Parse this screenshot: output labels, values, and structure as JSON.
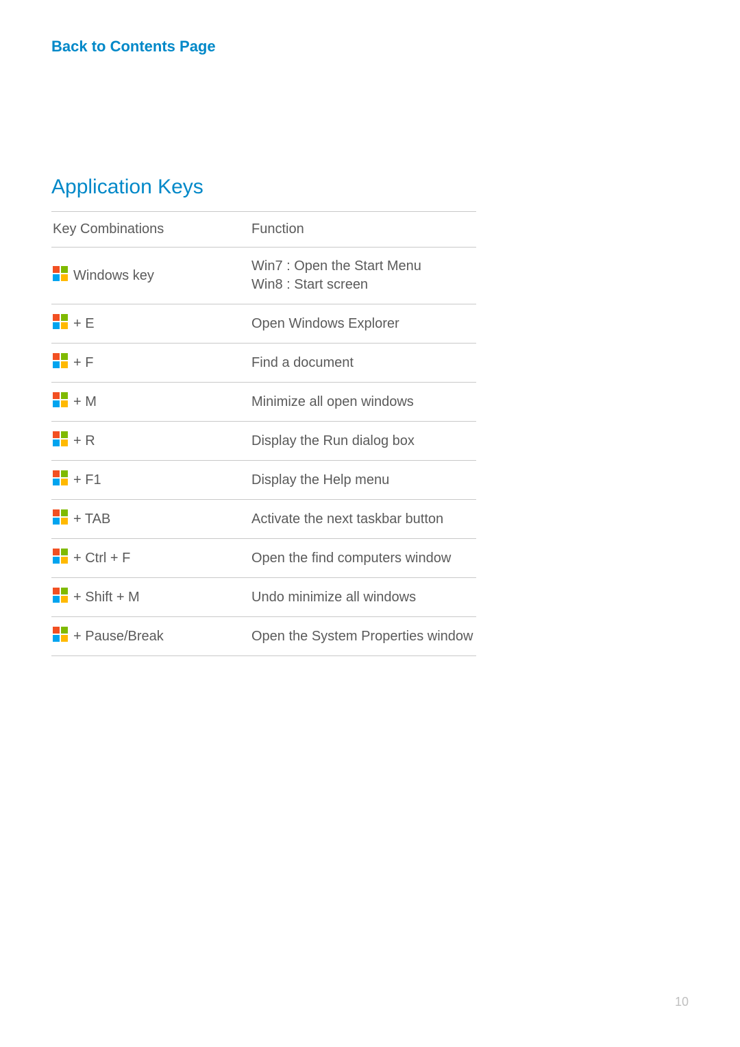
{
  "colors": {
    "link": "#0088c8",
    "heading": "#0088c8",
    "text": "#5a5a5a",
    "border": "#c8c8c8",
    "background": "#ffffff",
    "pageNumber": "#c0c0c0",
    "winIcon": {
      "tl": "#f25022",
      "tr": "#7fba00",
      "bl": "#00a4ef",
      "br": "#ffb900"
    }
  },
  "backLink": "Back to Contents Page",
  "heading": "Application Keys",
  "table": {
    "headers": {
      "col1": "Key Combinations",
      "col2": "Function"
    },
    "rows": [
      {
        "key": "Windows key",
        "func": [
          "Win7 : Open the Start Menu",
          "Win8 : Start screen"
        ]
      },
      {
        "key": "+ E",
        "func": [
          "Open Windows Explorer"
        ]
      },
      {
        "key": "+ F",
        "func": [
          "Find a document"
        ]
      },
      {
        "key": "+ M",
        "func": [
          "Minimize all open windows"
        ]
      },
      {
        "key": "+ R",
        "func": [
          "Display the Run dialog box"
        ]
      },
      {
        "key": "+ F1",
        "func": [
          "Display the Help menu"
        ]
      },
      {
        "key": "+ TAB",
        "func": [
          "Activate the next taskbar button"
        ]
      },
      {
        "key": "+ Ctrl + F",
        "func": [
          "Open the find computers window"
        ]
      },
      {
        "key": "+ Shift + M",
        "func": [
          "Undo minimize all windows"
        ]
      },
      {
        "key": "+ Pause/Break",
        "func": [
          "Open the System Properties window"
        ]
      }
    ]
  },
  "pageNumber": "10"
}
